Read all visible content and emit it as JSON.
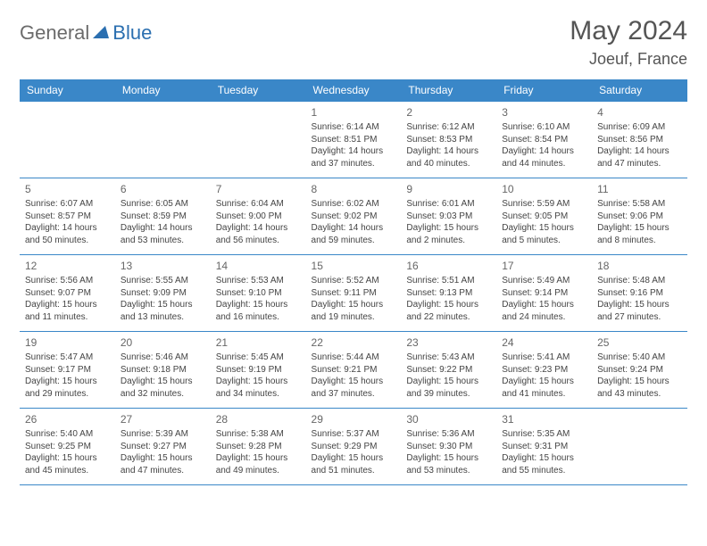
{
  "logo": {
    "part1": "General",
    "part2": "Blue"
  },
  "title": "May 2024",
  "location": "Joeuf, France",
  "colors": {
    "header_bg": "#3a87c8",
    "header_text": "#ffffff",
    "border": "#3a87c8",
    "logo_gray": "#6b6b6b",
    "logo_blue": "#2b6fb0",
    "title_color": "#555555",
    "cell_text": "#444444",
    "daynum_color": "#666666"
  },
  "weekdays": [
    "Sunday",
    "Monday",
    "Tuesday",
    "Wednesday",
    "Thursday",
    "Friday",
    "Saturday"
  ],
  "weeks": [
    [
      null,
      null,
      null,
      {
        "n": "1",
        "sr": "6:14 AM",
        "ss": "8:51 PM",
        "dl": "14 hours and 37 minutes."
      },
      {
        "n": "2",
        "sr": "6:12 AM",
        "ss": "8:53 PM",
        "dl": "14 hours and 40 minutes."
      },
      {
        "n": "3",
        "sr": "6:10 AM",
        "ss": "8:54 PM",
        "dl": "14 hours and 44 minutes."
      },
      {
        "n": "4",
        "sr": "6:09 AM",
        "ss": "8:56 PM",
        "dl": "14 hours and 47 minutes."
      }
    ],
    [
      {
        "n": "5",
        "sr": "6:07 AM",
        "ss": "8:57 PM",
        "dl": "14 hours and 50 minutes."
      },
      {
        "n": "6",
        "sr": "6:05 AM",
        "ss": "8:59 PM",
        "dl": "14 hours and 53 minutes."
      },
      {
        "n": "7",
        "sr": "6:04 AM",
        "ss": "9:00 PM",
        "dl": "14 hours and 56 minutes."
      },
      {
        "n": "8",
        "sr": "6:02 AM",
        "ss": "9:02 PM",
        "dl": "14 hours and 59 minutes."
      },
      {
        "n": "9",
        "sr": "6:01 AM",
        "ss": "9:03 PM",
        "dl": "15 hours and 2 minutes."
      },
      {
        "n": "10",
        "sr": "5:59 AM",
        "ss": "9:05 PM",
        "dl": "15 hours and 5 minutes."
      },
      {
        "n": "11",
        "sr": "5:58 AM",
        "ss": "9:06 PM",
        "dl": "15 hours and 8 minutes."
      }
    ],
    [
      {
        "n": "12",
        "sr": "5:56 AM",
        "ss": "9:07 PM",
        "dl": "15 hours and 11 minutes."
      },
      {
        "n": "13",
        "sr": "5:55 AM",
        "ss": "9:09 PM",
        "dl": "15 hours and 13 minutes."
      },
      {
        "n": "14",
        "sr": "5:53 AM",
        "ss": "9:10 PM",
        "dl": "15 hours and 16 minutes."
      },
      {
        "n": "15",
        "sr": "5:52 AM",
        "ss": "9:11 PM",
        "dl": "15 hours and 19 minutes."
      },
      {
        "n": "16",
        "sr": "5:51 AM",
        "ss": "9:13 PM",
        "dl": "15 hours and 22 minutes."
      },
      {
        "n": "17",
        "sr": "5:49 AM",
        "ss": "9:14 PM",
        "dl": "15 hours and 24 minutes."
      },
      {
        "n": "18",
        "sr": "5:48 AM",
        "ss": "9:16 PM",
        "dl": "15 hours and 27 minutes."
      }
    ],
    [
      {
        "n": "19",
        "sr": "5:47 AM",
        "ss": "9:17 PM",
        "dl": "15 hours and 29 minutes."
      },
      {
        "n": "20",
        "sr": "5:46 AM",
        "ss": "9:18 PM",
        "dl": "15 hours and 32 minutes."
      },
      {
        "n": "21",
        "sr": "5:45 AM",
        "ss": "9:19 PM",
        "dl": "15 hours and 34 minutes."
      },
      {
        "n": "22",
        "sr": "5:44 AM",
        "ss": "9:21 PM",
        "dl": "15 hours and 37 minutes."
      },
      {
        "n": "23",
        "sr": "5:43 AM",
        "ss": "9:22 PM",
        "dl": "15 hours and 39 minutes."
      },
      {
        "n": "24",
        "sr": "5:41 AM",
        "ss": "9:23 PM",
        "dl": "15 hours and 41 minutes."
      },
      {
        "n": "25",
        "sr": "5:40 AM",
        "ss": "9:24 PM",
        "dl": "15 hours and 43 minutes."
      }
    ],
    [
      {
        "n": "26",
        "sr": "5:40 AM",
        "ss": "9:25 PM",
        "dl": "15 hours and 45 minutes."
      },
      {
        "n": "27",
        "sr": "5:39 AM",
        "ss": "9:27 PM",
        "dl": "15 hours and 47 minutes."
      },
      {
        "n": "28",
        "sr": "5:38 AM",
        "ss": "9:28 PM",
        "dl": "15 hours and 49 minutes."
      },
      {
        "n": "29",
        "sr": "5:37 AM",
        "ss": "9:29 PM",
        "dl": "15 hours and 51 minutes."
      },
      {
        "n": "30",
        "sr": "5:36 AM",
        "ss": "9:30 PM",
        "dl": "15 hours and 53 minutes."
      },
      {
        "n": "31",
        "sr": "5:35 AM",
        "ss": "9:31 PM",
        "dl": "15 hours and 55 minutes."
      },
      null
    ]
  ],
  "labels": {
    "sunrise": "Sunrise:",
    "sunset": "Sunset:",
    "daylight": "Daylight:"
  }
}
